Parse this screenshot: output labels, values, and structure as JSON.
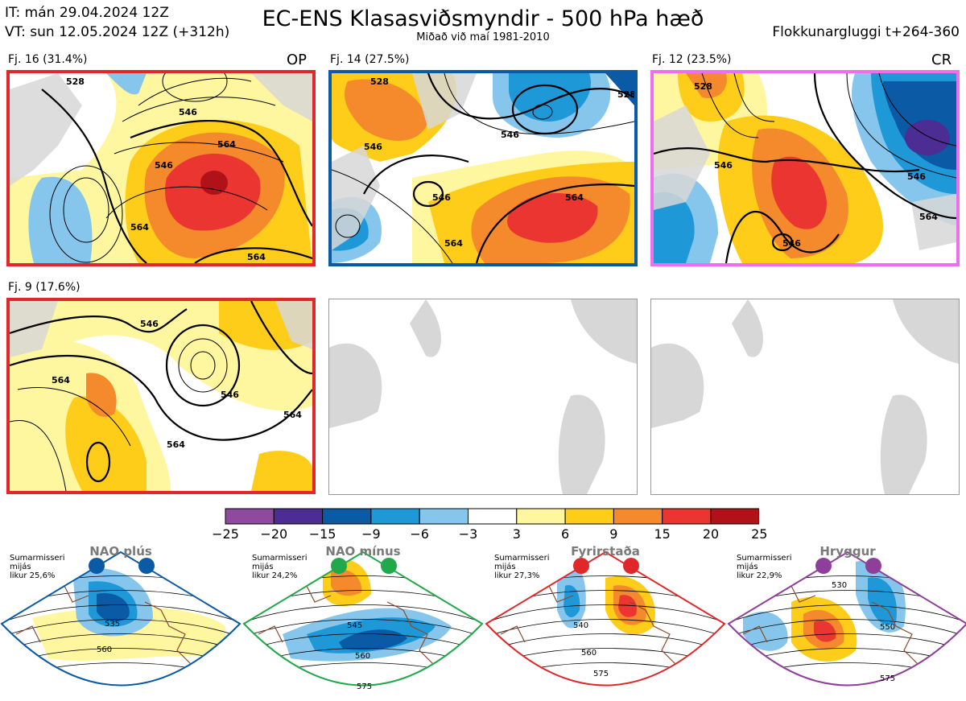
{
  "header": {
    "it_line": "IT: mán 29.04.2024 12Z",
    "vt_line": "VT: sun 12.05.2024 12Z  (+312h)",
    "title": "EC-ENS Klasasviðsmyndir - 500 hPa hæð",
    "subtitle": "Miðað við maí 1981-2010",
    "window": "Flokkunargluggi t+264-360"
  },
  "panels": [
    {
      "label": "Fj. 16 (31.4%)",
      "tag": "OP",
      "border_color": "#e0282a",
      "contours": [
        "546",
        "564",
        "564",
        "546",
        "564",
        "528"
      ]
    },
    {
      "label": "Fj. 14 (27.5%)",
      "tag": "",
      "border_color": "#0a5aa6",
      "contours": [
        "528",
        "546",
        "546",
        "546",
        "564",
        "564",
        "528"
      ]
    },
    {
      "label": "Fj. 12 (23.5%)",
      "tag": "CR",
      "border_color": "#ee6fee",
      "contours": [
        "546",
        "546",
        "564",
        "546",
        "528"
      ]
    },
    {
      "label": "Fj. 9 (17.6%)",
      "tag": "",
      "border_color": "#e0282a",
      "contours": [
        "564",
        "546",
        "546",
        "564",
        "564"
      ]
    }
  ],
  "colorbar": {
    "ticks": [
      "−25",
      "−20",
      "−15",
      "−9",
      "−6",
      "−3",
      "3",
      "6",
      "9",
      "15",
      "20",
      "25"
    ],
    "colors": [
      "#8e4a9e",
      "#4b2d93",
      "#0a5aa6",
      "#1f98d8",
      "#86c6ec",
      "#ffffff",
      "#fff6a0",
      "#fdcd1a",
      "#f48a2c",
      "#ea3530",
      "#b11219"
    ]
  },
  "regimes": [
    {
      "name": "NAO plús",
      "note_lines": [
        "Sumarmisseri",
        "mijás",
        "likur 25,6%"
      ],
      "color": "#0a5aa6",
      "contours": [
        "535",
        "560"
      ]
    },
    {
      "name": "NAO mínus",
      "note_lines": [
        "Sumarmisseri",
        "mijás",
        "likur 24,2%"
      ],
      "color": "#21a84a",
      "contours": [
        "545",
        "560",
        "575"
      ]
    },
    {
      "name": "Fyrirstaða",
      "note_lines": [
        "Sumarmisseri",
        "mijás",
        "likur 27,3%"
      ],
      "color": "#e0282a",
      "contours": [
        "540",
        "560",
        "575"
      ]
    },
    {
      "name": "Hryggur",
      "note_lines": [
        "Sumarmisseri",
        "mijás",
        "likur 22,9%"
      ],
      "color": "#8e3f9a",
      "contours": [
        "530",
        "550",
        "575"
      ]
    }
  ]
}
